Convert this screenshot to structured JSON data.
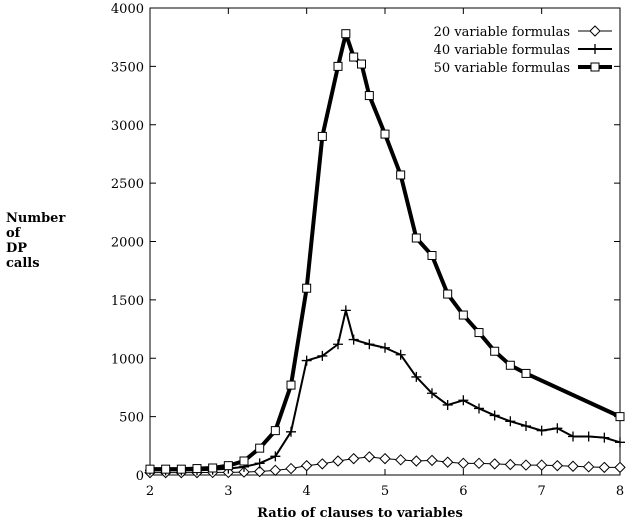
{
  "chart_data": {
    "type": "line",
    "title": "",
    "xlabel": "Ratio of clauses to variables",
    "ylabel_lines": [
      "Number",
      "of",
      "DP",
      "calls"
    ],
    "xlim": [
      2,
      8
    ],
    "ylim": [
      0,
      4000
    ],
    "xticks": [
      "2",
      "3",
      "4",
      "5",
      "6",
      "7",
      "8"
    ],
    "yticks": [
      "0",
      "500",
      "1000",
      "1500",
      "2000",
      "2500",
      "3000",
      "3500",
      "4000"
    ],
    "grid": false,
    "legend_position": "top-right",
    "series": [
      {
        "name": "20 variable formulas",
        "marker": "diamond",
        "x": [
          2.0,
          2.2,
          2.4,
          2.6,
          2.8,
          3.0,
          3.2,
          3.4,
          3.6,
          3.8,
          4.0,
          4.2,
          4.4,
          4.6,
          4.8,
          5.0,
          5.2,
          5.4,
          5.6,
          5.8,
          6.0,
          6.2,
          6.4,
          6.6,
          6.8,
          7.0,
          7.2,
          7.4,
          7.6,
          7.8,
          8.0
        ],
        "values": [
          20,
          20,
          20,
          20,
          22,
          22,
          25,
          30,
          40,
          55,
          80,
          95,
          120,
          140,
          155,
          140,
          130,
          120,
          125,
          110,
          100,
          100,
          95,
          90,
          85,
          85,
          80,
          75,
          70,
          65,
          65
        ]
      },
      {
        "name": "40 variable formulas",
        "marker": "plus",
        "x": [
          2.0,
          2.2,
          2.4,
          2.6,
          2.8,
          3.0,
          3.2,
          3.4,
          3.6,
          3.8,
          4.0,
          4.2,
          4.4,
          4.5,
          4.6,
          4.8,
          5.0,
          5.2,
          5.4,
          5.6,
          5.8,
          6.0,
          6.2,
          6.4,
          6.6,
          6.8,
          7.0,
          7.2,
          7.4,
          7.6,
          7.8,
          8.0
        ],
        "values": [
          40,
          40,
          40,
          40,
          45,
          55,
          70,
          100,
          160,
          370,
          980,
          1020,
          1120,
          1410,
          1160,
          1120,
          1090,
          1030,
          840,
          700,
          600,
          640,
          570,
          510,
          460,
          420,
          380,
          400,
          330,
          330,
          320,
          280
        ]
      },
      {
        "name": "50 variable formulas",
        "marker": "square",
        "x": [
          2.0,
          2.2,
          2.4,
          2.6,
          2.8,
          3.0,
          3.2,
          3.4,
          3.6,
          3.8,
          4.0,
          4.2,
          4.4,
          4.5,
          4.6,
          4.7,
          4.8,
          5.0,
          5.2,
          5.4,
          5.6,
          5.8,
          6.0,
          6.2,
          6.4,
          6.6,
          6.8,
          8.0
        ],
        "values": [
          50,
          50,
          50,
          55,
          60,
          80,
          120,
          230,
          380,
          770,
          1600,
          2900,
          3500,
          3780,
          3580,
          3520,
          3250,
          2920,
          2570,
          2030,
          1880,
          1550,
          1370,
          1220,
          1060,
          940,
          870,
          500
        ]
      }
    ]
  }
}
